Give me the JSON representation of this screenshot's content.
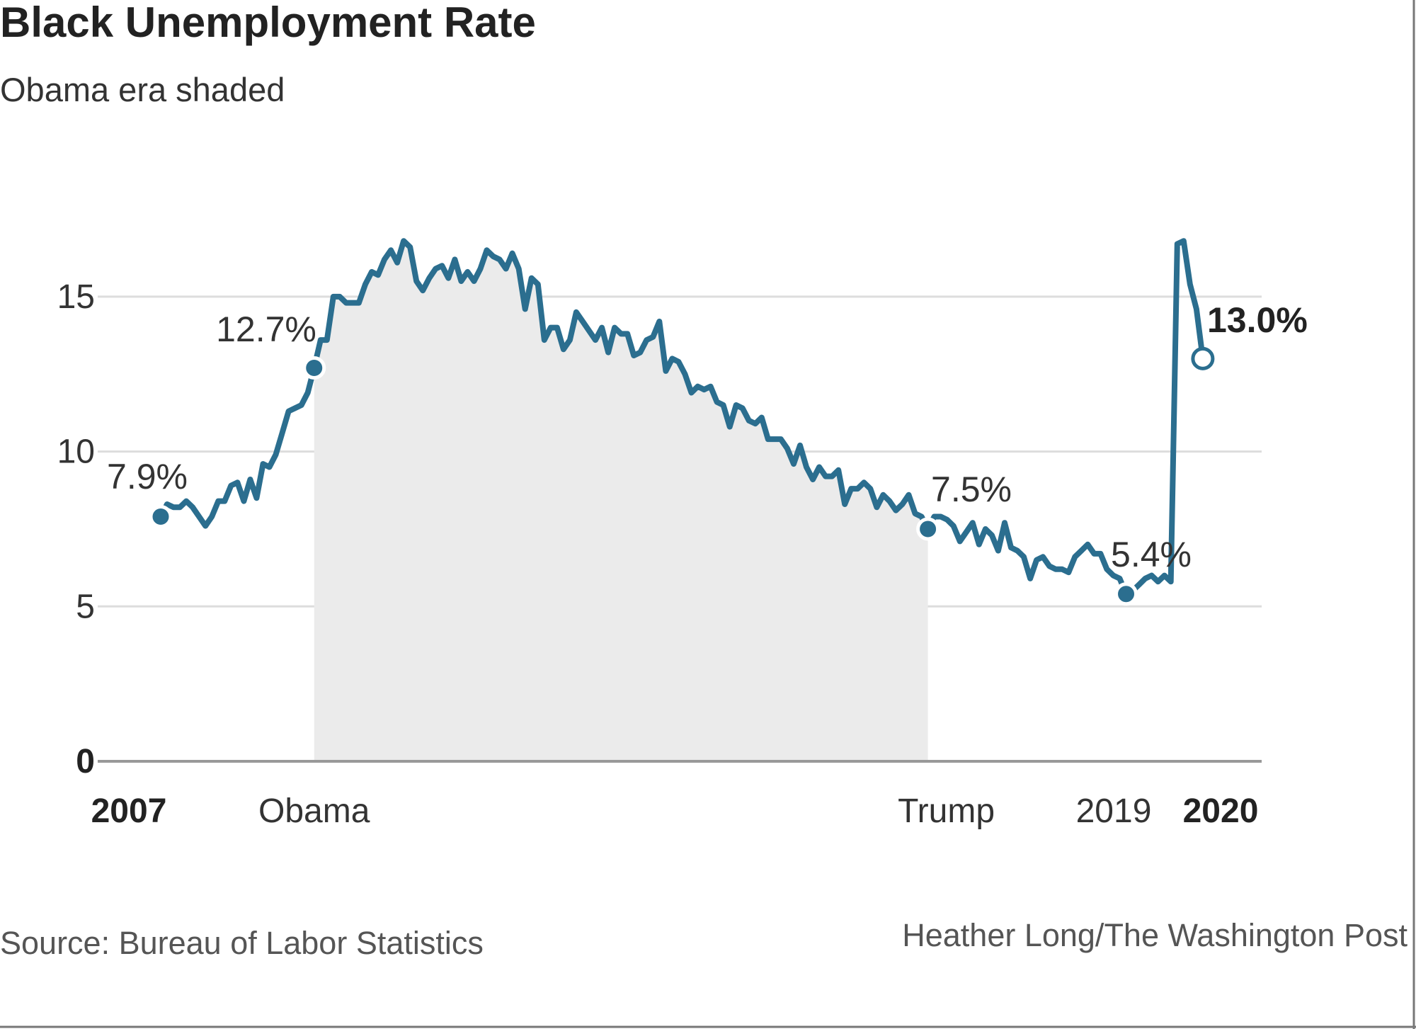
{
  "chart_data": {
    "type": "line",
    "title": "Black Unemployment Rate",
    "subtitle": "Obama era shaded",
    "xlabel": "",
    "ylabel": "",
    "ylim": [
      0,
      17
    ],
    "yticks": [
      "0",
      "5",
      "10",
      "15"
    ],
    "xtick_labels": [
      {
        "label": "2007",
        "x": "2007-01",
        "bold": true
      },
      {
        "label": "Obama",
        "x": "2009-01",
        "bold": false
      },
      {
        "label": "Trump",
        "x": "2017-01",
        "bold": false
      },
      {
        "label": "2019",
        "x": "2019-01",
        "bold": false
      },
      {
        "label": "2020",
        "x": "2020-03",
        "bold": true
      }
    ],
    "grid": true,
    "shaded_region": {
      "from": "2009-01",
      "to": "2017-01",
      "label": "Obama era"
    },
    "line_color": "#2b6e8f",
    "shade_color": "#ebebeb",
    "start": "2007-01",
    "values": [
      7.9,
      8.3,
      8.2,
      8.2,
      8.4,
      8.2,
      7.9,
      7.6,
      7.9,
      8.4,
      8.4,
      8.9,
      9.0,
      8.4,
      9.1,
      8.5,
      9.6,
      9.5,
      9.9,
      10.6,
      11.3,
      11.4,
      11.5,
      11.9,
      12.7,
      13.6,
      13.6,
      15.0,
      15.0,
      14.8,
      14.8,
      14.8,
      15.4,
      15.8,
      15.7,
      16.2,
      16.5,
      16.1,
      16.8,
      16.6,
      15.5,
      15.2,
      15.6,
      15.9,
      16.0,
      15.6,
      16.2,
      15.5,
      15.8,
      15.5,
      15.9,
      16.5,
      16.3,
      16.2,
      15.9,
      16.4,
      15.9,
      14.6,
      15.6,
      15.4,
      13.6,
      14.0,
      14.0,
      13.3,
      13.6,
      14.5,
      14.2,
      13.9,
      13.6,
      14.0,
      13.2,
      14.0,
      13.8,
      13.8,
      13.1,
      13.2,
      13.6,
      13.7,
      14.2,
      12.6,
      13.0,
      12.9,
      12.5,
      11.9,
      12.1,
      12.0,
      12.1,
      11.6,
      11.5,
      10.8,
      11.5,
      11.4,
      11.0,
      10.9,
      11.1,
      10.4,
      10.4,
      10.4,
      10.1,
      9.6,
      10.2,
      9.5,
      9.1,
      9.5,
      9.2,
      9.2,
      9.4,
      8.3,
      8.8,
      8.8,
      9.0,
      8.8,
      8.2,
      8.6,
      8.4,
      8.1,
      8.3,
      8.6,
      8.0,
      7.9,
      7.5,
      7.9,
      7.9,
      7.8,
      7.6,
      7.1,
      7.4,
      7.7,
      7.0,
      7.5,
      7.3,
      6.8,
      7.7,
      6.9,
      6.8,
      6.6,
      5.9,
      6.5,
      6.6,
      6.3,
      6.2,
      6.2,
      6.1,
      6.6,
      6.8,
      7.0,
      6.7,
      6.7,
      6.2,
      6.0,
      5.9,
      5.4,
      5.5,
      5.7,
      5.9,
      6.0,
      5.8,
      6.0,
      5.8,
      16.7,
      16.8,
      15.4,
      14.6,
      13.0
    ],
    "annotations": [
      {
        "label": "7.9%",
        "x": "2007-01",
        "value": 7.9,
        "bold": false
      },
      {
        "label": "12.7%",
        "x": "2009-01",
        "value": 12.7,
        "bold": false
      },
      {
        "label": "7.5%",
        "x": "2017-01",
        "value": 7.5,
        "bold": false
      },
      {
        "label": "5.4%",
        "x": "2019-08",
        "value": 5.4,
        "bold": false
      },
      {
        "label": "13.0%",
        "x": "2020-08",
        "value": 13.0,
        "bold": true
      }
    ]
  },
  "footer": {
    "source": "Source: Bureau of Labor Statistics",
    "credit": "Heather Long/The Washington Post"
  }
}
